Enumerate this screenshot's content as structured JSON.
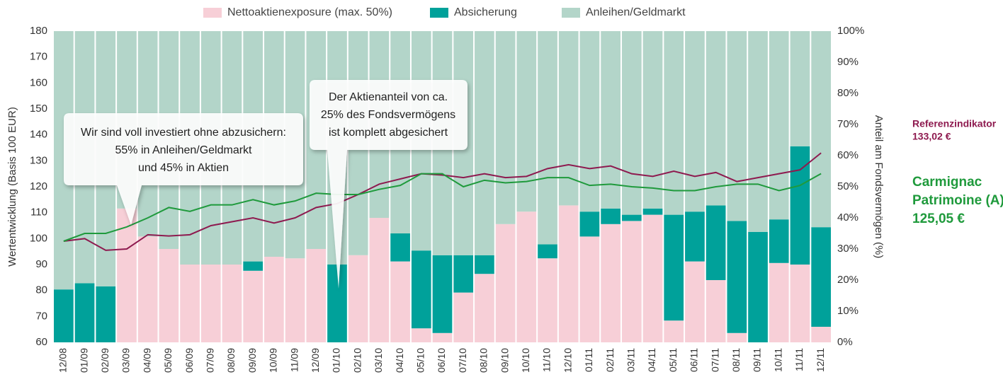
{
  "chart_data": {
    "type": "bar",
    "categories": [
      "12/08",
      "01/09",
      "02/09",
      "03/09",
      "04/09",
      "05/09",
      "06/09",
      "07/09",
      "08/09",
      "09/09",
      "10/09",
      "11/09",
      "12/09",
      "01/10",
      "02/10",
      "03/10",
      "04/10",
      "05/10",
      "06/10",
      "07/10",
      "08/10",
      "09/10",
      "10/10",
      "11/10",
      "12/10",
      "01/11",
      "02/11",
      "03/11",
      "04/11",
      "05/11",
      "06/11",
      "07/11",
      "08/11",
      "09/11",
      "10/11",
      "11/11",
      "12/11"
    ],
    "ylabel": "Wertentwicklung (Basis 100 EUR)",
    "y2label": "Anteil am Fondsvermögen (%)",
    "ylim": [
      60,
      180
    ],
    "yticks": [
      60,
      70,
      80,
      90,
      100,
      110,
      120,
      130,
      140,
      150,
      160,
      170,
      180
    ],
    "y2lim": [
      0,
      100
    ],
    "y2ticks": [
      {
        "value": 0,
        "label": "0%"
      },
      {
        "value": 10,
        "label": "10%"
      },
      {
        "value": 20,
        "label": "20%"
      },
      {
        "value": 30,
        "label": "30%"
      },
      {
        "value": 40,
        "label": "40%"
      },
      {
        "value": 50,
        "label": "50%"
      },
      {
        "value": 60,
        "label": "60%"
      },
      {
        "value": 70,
        "label": "70%"
      },
      {
        "value": 80,
        "label": "80%"
      },
      {
        "value": 90,
        "label": "90%"
      },
      {
        "value": 100,
        "label": "100%"
      }
    ],
    "legend": "top",
    "series": [
      {
        "name": "Nettoaktienexposure (max. 50%)",
        "type": "bar",
        "axis": "y2",
        "color": "#f7cfd7",
        "values": [
          0,
          0,
          0,
          43,
          34,
          30,
          25,
          25,
          25,
          23,
          27.5,
          27,
          30,
          0,
          28,
          40,
          26,
          4.5,
          3,
          16,
          22,
          38,
          42,
          27,
          44,
          34,
          38,
          39,
          41,
          7,
          26,
          20,
          3,
          0,
          25.5,
          25,
          5
        ]
      },
      {
        "name": "Absicherung",
        "type": "bar",
        "axis": "y2",
        "color": "#00a19a",
        "values": [
          17,
          19,
          18,
          0,
          0,
          0,
          0,
          0,
          0,
          3,
          0,
          0,
          0,
          25,
          0,
          0,
          9,
          25,
          25,
          12,
          6,
          0,
          0,
          4.5,
          0,
          8,
          5,
          2,
          2,
          34,
          16,
          24,
          36,
          35.5,
          14,
          38,
          32
        ]
      },
      {
        "name": "Anleihen/Geldmarkt",
        "type": "bar",
        "axis": "y2",
        "color": "#b3d5c9",
        "values": [
          83,
          81,
          82,
          57,
          66,
          70,
          75,
          75,
          75,
          74,
          72.5,
          73,
          70,
          75,
          72,
          60,
          65,
          70.5,
          72,
          72,
          72,
          62,
          58,
          68.5,
          56,
          58,
          57,
          59,
          57,
          59,
          58,
          56,
          61,
          64.5,
          60.5,
          37,
          63
        ]
      },
      {
        "name": "Referenzindikator",
        "type": "line",
        "axis": "y",
        "color": "#8e1a4f",
        "values": [
          99,
          100,
          95.5,
          96,
          101.5,
          101,
          101.5,
          105,
          106.5,
          108,
          106,
          108,
          112,
          113.5,
          117,
          121,
          123,
          125,
          124.5,
          123.5,
          125,
          123.5,
          124,
          127,
          128.5,
          127,
          128,
          125,
          124,
          126,
          124,
          125.5,
          122,
          123.5,
          125,
          126.5,
          133.02
        ]
      },
      {
        "name": "Carmignac Patrimoine (A)",
        "type": "line",
        "axis": "y",
        "color": "#1f9a3c",
        "values": [
          99,
          102,
          102,
          104.5,
          108,
          112,
          110.5,
          113,
          113,
          115,
          113,
          114.5,
          117.5,
          117,
          117,
          119,
          120.5,
          125,
          125,
          120,
          122.5,
          121.5,
          122,
          123.5,
          123.5,
          120.5,
          121,
          120,
          119.5,
          118.5,
          118.5,
          120,
          121,
          121,
          118.5,
          120.5,
          125.05
        ]
      }
    ],
    "end_labels": [
      {
        "lines": [
          "Referenzindikator",
          "133,02 €"
        ],
        "color": "#8e1a4f"
      },
      {
        "lines": [
          "Carmignac",
          "Patrimoine (A)",
          "125,05 €"
        ],
        "color": "#1f9a3c"
      }
    ],
    "annotations": [
      {
        "lines": [
          "Wir sind voll investiert ohne abzusichern:",
          "55% in Anleihen/Geldmarkt",
          "und 45% in Aktien"
        ]
      },
      {
        "lines": [
          "Der Aktienanteil von ca.",
          "25% des Fondsvermögens",
          "ist komplett abgesichert"
        ]
      }
    ]
  }
}
